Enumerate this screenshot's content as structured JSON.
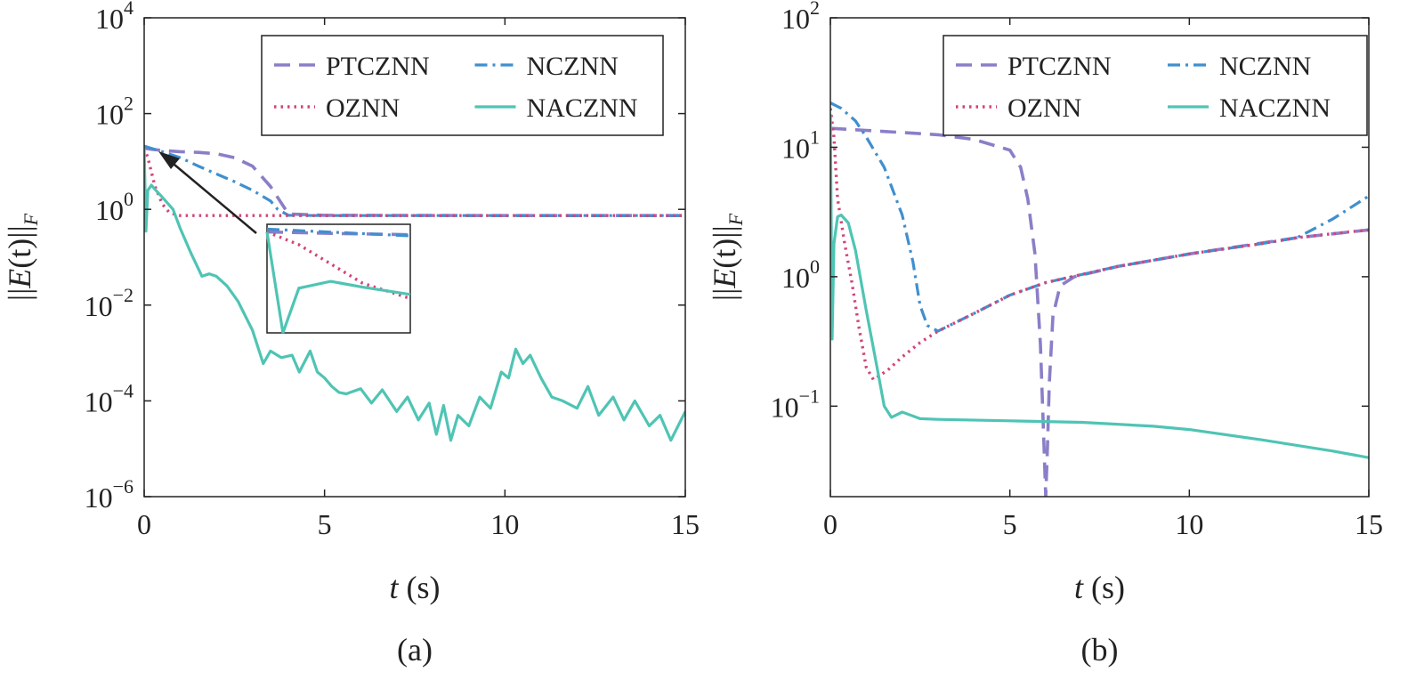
{
  "figure_labels": [
    "(a)",
    "(b)"
  ],
  "colors": {
    "PTCZNN": "#8b7ec8",
    "NCZNN": "#3f8fcf",
    "OZNN": "#d2447a",
    "NACZNN": "#4fc4b4"
  },
  "chart_data": [
    {
      "type": "line",
      "panel": "(a)",
      "xlabel_italic": "t",
      "xlabel_rest": " (s)",
      "ylabel": "||E(t)||F",
      "xlim": [
        0,
        15
      ],
      "ylim": [
        1e-06,
        10000.0
      ],
      "yscale": "log",
      "xticks": [
        "0",
        "5",
        "10",
        "15"
      ],
      "yticks": [
        {
          "base": "10",
          "exp": "4"
        },
        {
          "base": "10",
          "exp": "2"
        },
        {
          "base": "10",
          "exp": "0"
        },
        {
          "base": "10",
          "exp": "−2"
        },
        {
          "base": "10",
          "exp": "−4"
        },
        {
          "base": "10",
          "exp": "−6"
        }
      ],
      "legend": [
        "PTCZNN",
        "NCZNN",
        "OZNN",
        "NACZNN"
      ],
      "legend_position": "top-right",
      "inset": true,
      "series": [
        {
          "name": "PTCZNN",
          "style": "dashed",
          "x": [
            0,
            0.2,
            0.5,
            1.0,
            1.5,
            2.0,
            2.5,
            3.0,
            3.5,
            4.0,
            5,
            10,
            15
          ],
          "y": [
            19,
            18,
            17,
            16,
            15.5,
            14.5,
            12,
            8,
            3,
            0.8,
            0.75,
            0.74,
            0.74
          ]
        },
        {
          "name": "NCZNN",
          "style": "dashdot",
          "x": [
            0,
            0.5,
            1.0,
            1.5,
            2.0,
            2.5,
            3.0,
            3.5,
            3.7,
            4.0,
            5,
            10,
            15
          ],
          "y": [
            21,
            16,
            12,
            8,
            5.5,
            3.8,
            2.5,
            1.5,
            1.0,
            0.75,
            0.74,
            0.74,
            0.74
          ]
        },
        {
          "name": "OZNN",
          "style": "dotted",
          "x": [
            0,
            0.1,
            0.2,
            0.3,
            0.5,
            0.7,
            1.0,
            2,
            5,
            10,
            15
          ],
          "y": [
            19,
            12,
            6,
            3,
            1.3,
            0.85,
            0.74,
            0.74,
            0.74,
            0.74,
            0.74
          ]
        },
        {
          "name": "NACZNN",
          "style": "solid",
          "x": [
            0,
            0.05,
            0.1,
            0.2,
            0.3,
            0.5,
            0.8,
            1.0,
            1.3,
            1.6,
            1.8,
            2.0,
            2.3,
            2.6,
            3.0,
            3.3,
            3.5,
            3.8,
            4.1,
            4.3,
            4.6,
            4.8,
            5.0,
            5.2,
            5.4,
            5.6,
            6.0,
            6.3,
            6.6,
            7.0,
            7.3,
            7.6,
            7.9,
            8.1,
            8.3,
            8.5,
            8.7,
            9.0,
            9.3,
            9.6,
            9.9,
            10.1,
            10.3,
            10.5,
            10.7,
            11.0,
            11.3,
            11.6,
            12.0,
            12.3,
            12.6,
            13.0,
            13.3,
            13.6,
            14.0,
            14.3,
            14.6,
            14.8,
            15.0
          ],
          "y": [
            19,
            0.35,
            2.5,
            3.2,
            2.6,
            1.8,
            1.0,
            0.4,
            0.12,
            0.04,
            0.045,
            0.04,
            0.025,
            0.012,
            0.003,
            0.0006,
            0.0011,
            0.0008,
            0.0009,
            0.0004,
            0.0011,
            0.0004,
            0.0003,
            0.0002,
            0.00015,
            0.00014,
            0.00018,
            9e-05,
            0.00017,
            6e-05,
            0.00012,
            4e-05,
            9e-05,
            2e-05,
            8e-05,
            1.5e-05,
            5e-05,
            3e-05,
            0.00012,
            7e-05,
            0.0004,
            0.0003,
            0.0012,
            0.0006,
            0.0009,
            0.0003,
            0.00012,
            0.0001,
            7e-05,
            0.0002,
            5e-05,
            0.00012,
            4e-05,
            0.0001,
            3e-05,
            5e-05,
            1.5e-05,
            3e-05,
            6e-05
          ]
        }
      ]
    },
    {
      "type": "line",
      "panel": "(b)",
      "xlabel_italic": "t",
      "xlabel_rest": " (s)",
      "ylabel": "||E(t)||F",
      "xlim": [
        0,
        15
      ],
      "ylim": [
        0.02,
        100
      ],
      "yscale": "log",
      "xticks": [
        "0",
        "5",
        "10",
        "15"
      ],
      "yticks": [
        {
          "base": "10",
          "exp": "2",
          "value": 100
        },
        {
          "base": "10",
          "exp": "1",
          "value": 10
        },
        {
          "base": "10",
          "exp": "0",
          "value": 1
        },
        {
          "base": "10",
          "exp": "−1",
          "value": 0.1
        }
      ],
      "legend": [
        "PTCZNN",
        "NCZNN",
        "OZNN",
        "NACZNN"
      ],
      "legend_position": "top-right",
      "series": [
        {
          "name": "PTCZNN",
          "style": "dashed",
          "x": [
            0,
            1,
            2,
            3,
            4,
            5,
            5.3,
            5.5,
            5.7,
            5.85,
            5.95,
            6.0,
            6.05,
            6.1,
            6.2,
            6.4,
            6.8,
            8,
            10,
            13,
            15
          ],
          "y": [
            14,
            13.5,
            13,
            12.5,
            11.5,
            9.5,
            7,
            4,
            1.5,
            0.3,
            0.05,
            0.02,
            0.05,
            0.15,
            0.5,
            0.85,
            1.0,
            1.2,
            1.5,
            2.0,
            2.3
          ]
        },
        {
          "name": "NCZNN",
          "style": "dashdot",
          "x": [
            0,
            0.3,
            0.7,
            1.0,
            1.5,
            2.0,
            2.3,
            2.5,
            2.7,
            3.0,
            4,
            5,
            6,
            8,
            10,
            12,
            13,
            14,
            15
          ],
          "y": [
            22,
            20,
            16,
            12,
            7,
            3,
            1.3,
            0.6,
            0.42,
            0.38,
            0.52,
            0.72,
            0.9,
            1.2,
            1.5,
            1.8,
            2.0,
            2.8,
            4.2
          ]
        },
        {
          "name": "OZNN",
          "style": "dotted",
          "x": [
            0,
            0.1,
            0.2,
            0.4,
            0.6,
            0.8,
            1.0,
            1.2,
            1.6,
            2.0,
            2.5,
            3,
            4,
            5,
            6,
            8,
            10,
            12,
            13,
            14,
            15
          ],
          "y": [
            20,
            12,
            4,
            1.8,
            0.9,
            0.4,
            0.2,
            0.16,
            0.19,
            0.24,
            0.31,
            0.38,
            0.52,
            0.72,
            0.9,
            1.2,
            1.5,
            1.8,
            2.0,
            2.15,
            2.3
          ]
        },
        {
          "name": "NACZNN",
          "style": "solid",
          "x": [
            0,
            0.05,
            0.1,
            0.2,
            0.3,
            0.5,
            0.7,
            1.0,
            1.3,
            1.5,
            1.7,
            2.0,
            2.5,
            3,
            5,
            7,
            9,
            10,
            12,
            14,
            15
          ],
          "y": [
            18,
            0.33,
            1.8,
            2.9,
            3.0,
            2.6,
            1.6,
            0.55,
            0.2,
            0.1,
            0.082,
            0.09,
            0.08,
            0.079,
            0.077,
            0.075,
            0.07,
            0.066,
            0.055,
            0.045,
            0.04
          ]
        }
      ]
    }
  ]
}
